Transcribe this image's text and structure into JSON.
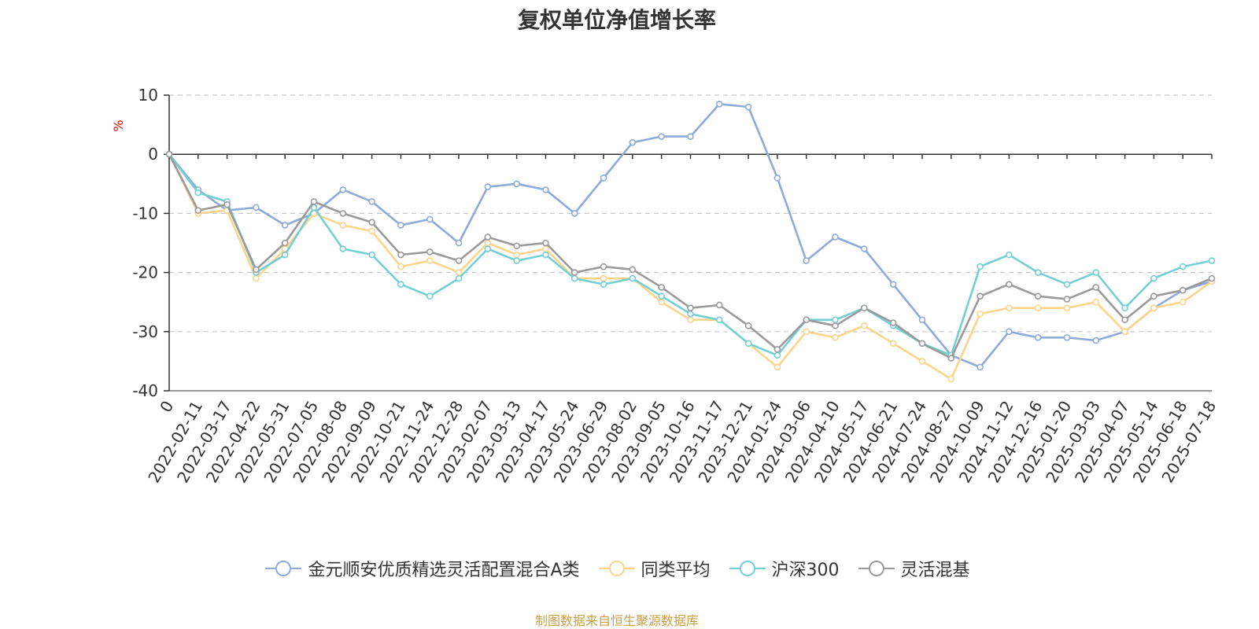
{
  "chart_data": {
    "type": "line",
    "title": "复权单位净值增长率",
    "ylabel": "%",
    "ylim": [
      -40,
      10
    ],
    "yticks": [
      10,
      0,
      -10,
      -20,
      -30,
      -40
    ],
    "grid": true,
    "legend_position": "bottom",
    "source_note": "制图数据来自恒生聚源数据库",
    "x": [
      "0",
      "2022-02-11",
      "2022-03-17",
      "2022-04-22",
      "2022-05-31",
      "2022-07-05",
      "2022-08-08",
      "2022-09-09",
      "2022-10-21",
      "2022-11-24",
      "2022-12-28",
      "2023-02-07",
      "2023-03-13",
      "2023-04-17",
      "2023-05-24",
      "2023-06-29",
      "2023-08-02",
      "2023-09-05",
      "2023-10-16",
      "2023-11-17",
      "2023-12-21",
      "2024-01-24",
      "2024-03-06",
      "2024-04-10",
      "2024-05-17",
      "2024-06-21",
      "2024-07-24",
      "2024-08-27",
      "2024-10-09",
      "2024-11-12",
      "2024-12-16",
      "2025-01-20",
      "2025-03-03",
      "2025-04-07",
      "2025-05-14",
      "2025-06-18",
      "2025-07-18"
    ],
    "series": [
      {
        "name": "金元顺安优质精选灵活配置混合A类",
        "color": "#8eaad9",
        "values": [
          0,
          -6,
          -9.5,
          -9,
          -12,
          -10,
          -6,
          -8,
          -12,
          -11,
          -15,
          -5.5,
          -5,
          -6,
          -10,
          -4,
          2,
          3,
          3,
          8.5,
          8,
          -4,
          -18,
          -14,
          -16,
          -22,
          -28,
          -34,
          -36,
          -30,
          -31,
          -31,
          -31.5,
          -30,
          -26,
          -23,
          -21.5
        ]
      },
      {
        "name": "同类平均",
        "color": "#fcd48c",
        "values": [
          0,
          -10,
          -9.5,
          -21,
          -16,
          -10,
          -12,
          -13,
          -19,
          -18,
          -20,
          -15,
          -17,
          -16,
          -21,
          -21,
          -21,
          -25,
          -28,
          -28,
          -32,
          -36,
          -30,
          -31,
          -29,
          -32,
          -35,
          -38,
          -27,
          -26,
          -26,
          -26,
          -25,
          -30,
          -26,
          -25,
          -21.5
        ]
      },
      {
        "name": "沪深300",
        "color": "#73cfd3",
        "values": [
          0,
          -6.5,
          -8,
          -20,
          -17,
          -9,
          -16,
          -17,
          -22,
          -24,
          -21,
          -16,
          -18,
          -17,
          -21,
          -22,
          -21,
          -24,
          -27,
          -28,
          -32,
          -34,
          -28,
          -28,
          -26,
          -29,
          -32,
          -34,
          -19,
          -17,
          -20,
          -22,
          -20,
          -26,
          -21,
          -19,
          -18
        ]
      },
      {
        "name": "灵活混基",
        "color": "#9a9a9a",
        "values": [
          0,
          -9.5,
          -8.5,
          -19.5,
          -15,
          -8,
          -10,
          -11.5,
          -17,
          -16.5,
          -18,
          -14,
          -15.5,
          -15,
          -20,
          -19,
          -19.5,
          -22.5,
          -26,
          -25.5,
          -29,
          -33,
          -28,
          -29,
          -26,
          -28.5,
          -32,
          -34.5,
          -24,
          -22,
          -24,
          -24.5,
          -22.5,
          -28,
          -24,
          -23,
          -21
        ]
      }
    ]
  }
}
